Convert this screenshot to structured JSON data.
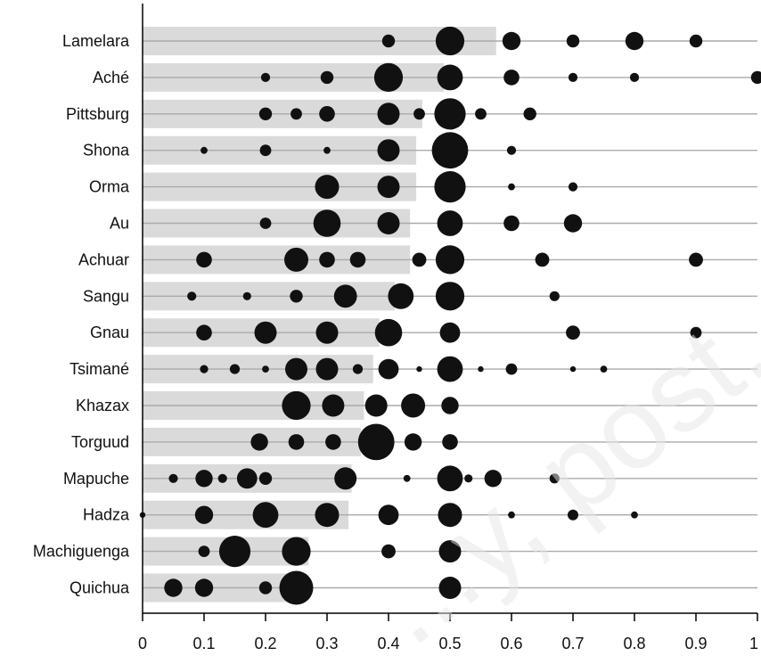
{
  "chart_data": {
    "type": "scatter",
    "subtype": "bubble-dot-plot-with-mean-bars",
    "title": "",
    "xlabel": "",
    "ylabel": "",
    "xlim": [
      0,
      1
    ],
    "xticks": [
      "0",
      "0.1",
      "0.2",
      "0.3",
      "0.4",
      "0.5",
      "0.6",
      "0.7",
      "0.8",
      "0.9",
      "1"
    ],
    "grid": false,
    "colors": {
      "bar": "#dadada",
      "dot": "#111111",
      "line": "#aaaaaa",
      "axis": "#000000"
    },
    "watermark": "...y, post, or distr...",
    "rows": [
      {
        "name": "Lamelara",
        "mean": 0.575,
        "points": [
          [
            0.4,
            1
          ],
          [
            0.5,
            5
          ],
          [
            0.6,
            2
          ],
          [
            0.7,
            1
          ],
          [
            0.8,
            2
          ],
          [
            0.9,
            1
          ]
        ]
      },
      {
        "name": "Aché",
        "mean": 0.49,
        "points": [
          [
            0.2,
            0.5
          ],
          [
            0.3,
            1
          ],
          [
            0.4,
            5
          ],
          [
            0.5,
            4
          ],
          [
            0.6,
            1.5
          ],
          [
            0.7,
            0.5
          ],
          [
            0.8,
            0.5
          ],
          [
            1.0,
            1
          ]
        ]
      },
      {
        "name": "Pittsburg",
        "mean": 0.455,
        "points": [
          [
            0.2,
            1
          ],
          [
            0.25,
            0.8
          ],
          [
            0.3,
            1.5
          ],
          [
            0.4,
            3
          ],
          [
            0.45,
            0.8
          ],
          [
            0.5,
            6
          ],
          [
            0.55,
            0.8
          ],
          [
            0.63,
            1
          ]
        ]
      },
      {
        "name": "Shona",
        "mean": 0.445,
        "points": [
          [
            0.1,
            0.3
          ],
          [
            0.2,
            0.8
          ],
          [
            0.3,
            0.3
          ],
          [
            0.4,
            3
          ],
          [
            0.5,
            8
          ],
          [
            0.6,
            0.5
          ]
        ]
      },
      {
        "name": "Orma",
        "mean": 0.445,
        "points": [
          [
            0.3,
            3.5
          ],
          [
            0.4,
            3
          ],
          [
            0.5,
            6
          ],
          [
            0.6,
            0.3
          ],
          [
            0.7,
            0.5
          ]
        ]
      },
      {
        "name": "Au",
        "mean": 0.435,
        "points": [
          [
            0.2,
            0.8
          ],
          [
            0.3,
            4.5
          ],
          [
            0.4,
            3
          ],
          [
            0.5,
            4
          ],
          [
            0.6,
            1.5
          ],
          [
            0.7,
            2
          ]
        ]
      },
      {
        "name": "Achuar",
        "mean": 0.435,
        "points": [
          [
            0.1,
            1.5
          ],
          [
            0.25,
            3.5
          ],
          [
            0.3,
            1.5
          ],
          [
            0.35,
            1.5
          ],
          [
            0.45,
            1.2
          ],
          [
            0.5,
            5
          ],
          [
            0.65,
            1.2
          ],
          [
            0.9,
            1.2
          ]
        ]
      },
      {
        "name": "Sangu",
        "mean": 0.41,
        "points": [
          [
            0.08,
            0.5
          ],
          [
            0.17,
            0.4
          ],
          [
            0.25,
            1
          ],
          [
            0.33,
            3.2
          ],
          [
            0.42,
            4
          ],
          [
            0.5,
            5
          ],
          [
            0.67,
            0.6
          ]
        ]
      },
      {
        "name": "Gnau",
        "mean": 0.385,
        "points": [
          [
            0.1,
            1.5
          ],
          [
            0.2,
            3
          ],
          [
            0.3,
            3
          ],
          [
            0.4,
            4.5
          ],
          [
            0.5,
            2.5
          ],
          [
            0.7,
            1.2
          ],
          [
            0.9,
            0.8
          ]
        ]
      },
      {
        "name": "Tsimané",
        "mean": 0.375,
        "points": [
          [
            0.1,
            0.4
          ],
          [
            0.15,
            0.6
          ],
          [
            0.2,
            0.3
          ],
          [
            0.25,
            3
          ],
          [
            0.3,
            3
          ],
          [
            0.35,
            0.6
          ],
          [
            0.4,
            2.5
          ],
          [
            0.45,
            0.2
          ],
          [
            0.5,
            4
          ],
          [
            0.55,
            0.2
          ],
          [
            0.6,
            0.8
          ],
          [
            0.7,
            0.2
          ],
          [
            0.75,
            0.3
          ]
        ]
      },
      {
        "name": "Khazax",
        "mean": 0.36,
        "points": [
          [
            0.25,
            5
          ],
          [
            0.31,
            3
          ],
          [
            0.38,
            3
          ],
          [
            0.44,
            3.5
          ],
          [
            0.5,
            1.8
          ]
        ]
      },
      {
        "name": "Torguud",
        "mean": 0.355,
        "points": [
          [
            0.19,
            1.8
          ],
          [
            0.25,
            1.5
          ],
          [
            0.31,
            1.5
          ],
          [
            0.38,
            8
          ],
          [
            0.44,
            1.8
          ],
          [
            0.5,
            1.5
          ]
        ]
      },
      {
        "name": "Mapuche",
        "mean": 0.34,
        "points": [
          [
            0.05,
            0.5
          ],
          [
            0.1,
            1.8
          ],
          [
            0.13,
            0.5
          ],
          [
            0.17,
            2.5
          ],
          [
            0.2,
            1
          ],
          [
            0.33,
            3
          ],
          [
            0.43,
            0.3
          ],
          [
            0.5,
            4
          ],
          [
            0.53,
            0.4
          ],
          [
            0.57,
            1.8
          ],
          [
            0.67,
            0.6
          ]
        ]
      },
      {
        "name": "Hadza",
        "mean": 0.335,
        "points": [
          [
            0.0,
            0.2
          ],
          [
            0.1,
            2
          ],
          [
            0.2,
            4
          ],
          [
            0.3,
            3.5
          ],
          [
            0.4,
            2.5
          ],
          [
            0.5,
            3.5
          ],
          [
            0.6,
            0.3
          ],
          [
            0.7,
            0.7
          ],
          [
            0.8,
            0.3
          ]
        ]
      },
      {
        "name": "Machiguenga",
        "mean": 0.27,
        "points": [
          [
            0.1,
            0.8
          ],
          [
            0.15,
            6
          ],
          [
            0.25,
            5
          ],
          [
            0.4,
            1.2
          ],
          [
            0.5,
            3
          ]
        ]
      },
      {
        "name": "Quichua",
        "mean": 0.265,
        "points": [
          [
            0.05,
            2
          ],
          [
            0.1,
            2
          ],
          [
            0.2,
            1
          ],
          [
            0.25,
            7
          ],
          [
            0.5,
            3
          ]
        ]
      }
    ]
  }
}
